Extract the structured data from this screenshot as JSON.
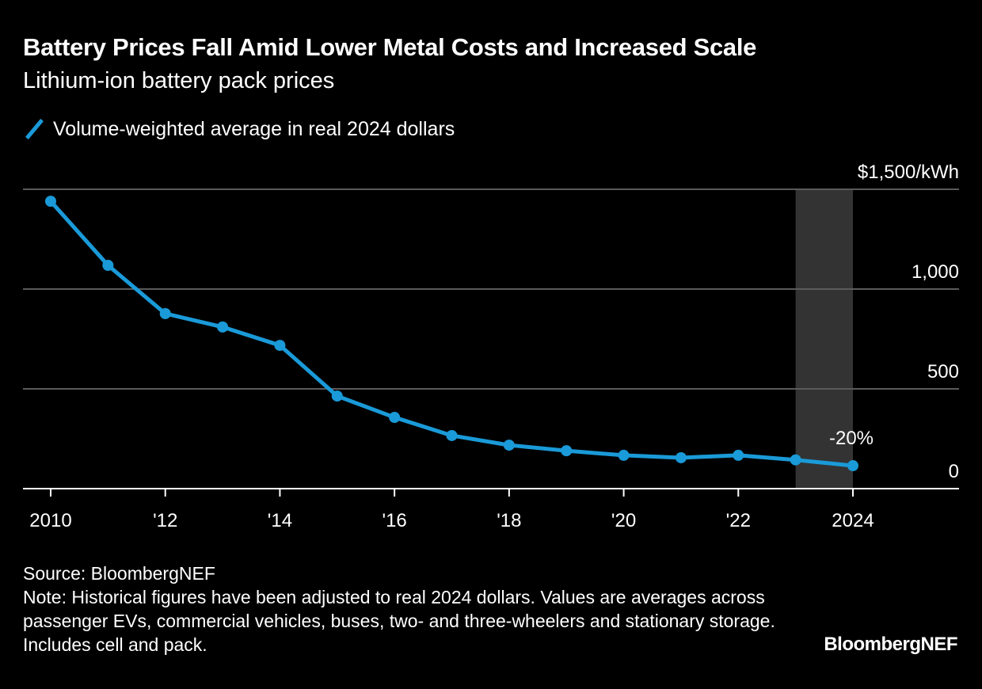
{
  "header": {
    "title": "Battery Prices Fall Amid Lower Metal Costs and Increased Scale",
    "subtitle": "Lithium-ion battery pack prices"
  },
  "legend": {
    "icon": "diagonal-line-swatch",
    "label": "Volume-weighted average in real 2024 dollars"
  },
  "footer": {
    "source": "Source: BloombergNEF",
    "note": "Note: Historical figures have been adjusted to real 2024 dollars. Values are averages across passenger EVs, commercial vehicles, buses, two- and three-wheelers and stationary storage. Includes cell and pack.",
    "brand": "BloombergNEF"
  },
  "colors": {
    "background": "#000000",
    "series": "#1a9ad8",
    "gridline": "#5a5a5a",
    "highlight_band": "#333333",
    "text": "#ffffff"
  },
  "chart_data": {
    "type": "line",
    "title": "Battery Prices Fall Amid Lower Metal Costs and Increased Scale",
    "subtitle": "Lithium-ion battery pack prices",
    "xlabel": "",
    "ylabel": "$/kWh",
    "x": [
      2010,
      2011,
      2012,
      2013,
      2014,
      2015,
      2016,
      2017,
      2018,
      2019,
      2020,
      2021,
      2022,
      2023,
      2024
    ],
    "series": [
      {
        "name": "Volume-weighted average in real 2024 dollars",
        "values": [
          1440,
          1119,
          877,
          810,
          718,
          464,
          357,
          266,
          218,
          190,
          167,
          155,
          167,
          144,
          115
        ]
      }
    ],
    "xlim": [
      2010,
      2025.8
    ],
    "ylim": [
      0,
      1500
    ],
    "x_ticks": [
      2010,
      2012,
      2014,
      2016,
      2018,
      2020,
      2022,
      2024
    ],
    "x_tick_labels": [
      "2010",
      "'12",
      "'14",
      "'16",
      "'18",
      "'20",
      "'22",
      "2024"
    ],
    "y_ticks": [
      0,
      500,
      1000,
      1500
    ],
    "y_tick_labels": [
      "0",
      "500",
      "1,000",
      "$1,500/kWh"
    ],
    "y_axis_side": "right",
    "grid": true,
    "highlight_band": {
      "x_start": 2023,
      "x_end": 2024
    },
    "annotations": [
      {
        "text": "-20%",
        "x": 2024,
        "y": 115,
        "position": "above"
      }
    ],
    "legend_position": "top-left"
  }
}
